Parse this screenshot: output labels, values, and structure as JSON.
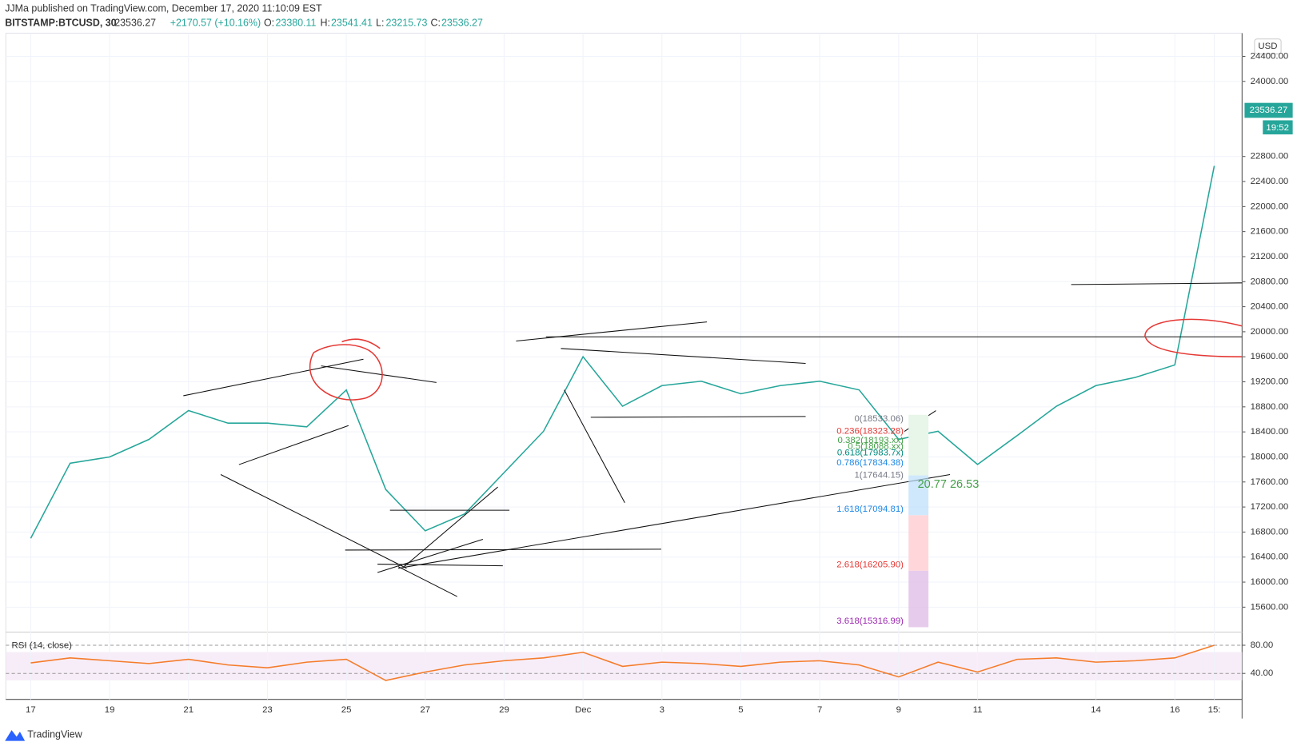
{
  "header": {
    "author": "JJMa published on TradingView.com, December 17, 2020 11:10:09 EST",
    "symbol": "BITSTAMP:BTCUSD, 30",
    "price": "23536.27",
    "change": "+2170.57 (+10.16%)",
    "o_label": "O:",
    "o": "23380.11",
    "h_label": "H:",
    "h": "23541.41",
    "l_label": "L:",
    "l": "23215.73",
    "c_label": "C:",
    "c": "23536.27"
  },
  "price_scale": {
    "currency": "USD",
    "last_price": "23536.27",
    "countdown": "19:52"
  },
  "fibonacci": [
    "0(18533.06)",
    "0.236(18323.28)",
    "0.382(18193.xx)",
    "0.5(18088.xx)",
    "0.618(17983.7x)",
    "0.786(17834.38)",
    "1(17644.15)",
    "1.618(17094.81)",
    "2.618(16205.90)",
    "3.618(15316.99)"
  ],
  "measure": "20.77 26.53",
  "footer": "TradingView",
  "chart_data": [
    {
      "type": "line",
      "color": "#26a69a",
      "categories": [
        "17",
        null,
        "19",
        null,
        "21",
        null,
        "23",
        null,
        "25",
        null,
        "27",
        null,
        "29",
        null,
        "Dec",
        null,
        "3",
        null,
        "5",
        null,
        "7",
        null,
        "9",
        null,
        "11",
        null,
        null,
        "14",
        null,
        "16",
        "15:"
      ],
      "values": [
        16700,
        17900,
        18000,
        18280,
        18740,
        18540,
        18540,
        18480,
        19070,
        17480,
        16820,
        17090,
        17750,
        18410,
        19600,
        18810,
        19140,
        19210,
        19010,
        19140,
        19210,
        19070,
        18280,
        18410,
        17880,
        18340,
        18810,
        19140,
        19270,
        19470,
        22650
      ],
      "ylim": [
        15200,
        24770
      ],
      "yticks": [
        {
          "value": 15600,
          "label": "15600.00"
        },
        {
          "value": 16000,
          "label": "16000.00"
        },
        {
          "value": 16400,
          "label": "16400.00"
        },
        {
          "value": 16800,
          "label": "16800.00"
        },
        {
          "value": 17200,
          "label": "17200.00"
        },
        {
          "value": 17600,
          "label": "17600.00"
        },
        {
          "value": 18000,
          "label": "18000.00"
        },
        {
          "value": 18400,
          "label": "18400.00"
        },
        {
          "value": 18800,
          "label": "18800.00"
        },
        {
          "value": 19200,
          "label": "19200.00"
        },
        {
          "value": 19600,
          "label": "19600.00"
        },
        {
          "value": 20000,
          "label": "20000.00"
        },
        {
          "value": 20400,
          "label": "20400.00"
        },
        {
          "value": 20800,
          "label": "20800.00"
        },
        {
          "value": 21200,
          "label": "21200.00"
        },
        {
          "value": 21600,
          "label": "21600.00"
        },
        {
          "value": 22000,
          "label": "22000.00"
        },
        {
          "value": 22400,
          "label": "22400.00"
        },
        {
          "value": 22800,
          "label": "22800.00"
        },
        {
          "value": 24000,
          "label": "24000.00"
        },
        {
          "value": 24400,
          "label": "24400.00"
        }
      ],
      "grid": true
    },
    {
      "type": "line",
      "title": "RSI (14, close)",
      "color": "#f57c2a",
      "values": [
        55,
        62,
        58,
        54,
        60,
        52,
        48,
        56,
        60,
        30,
        42,
        52,
        58,
        62,
        70,
        50,
        56,
        54,
        50,
        56,
        58,
        52,
        35,
        56,
        42,
        60,
        62,
        56,
        58,
        62,
        80
      ],
      "ylim": [
        9,
        95
      ],
      "yticks": [
        {
          "value": 40,
          "label": "40.00"
        },
        {
          "value": 80,
          "label": "80.00"
        }
      ]
    }
  ]
}
